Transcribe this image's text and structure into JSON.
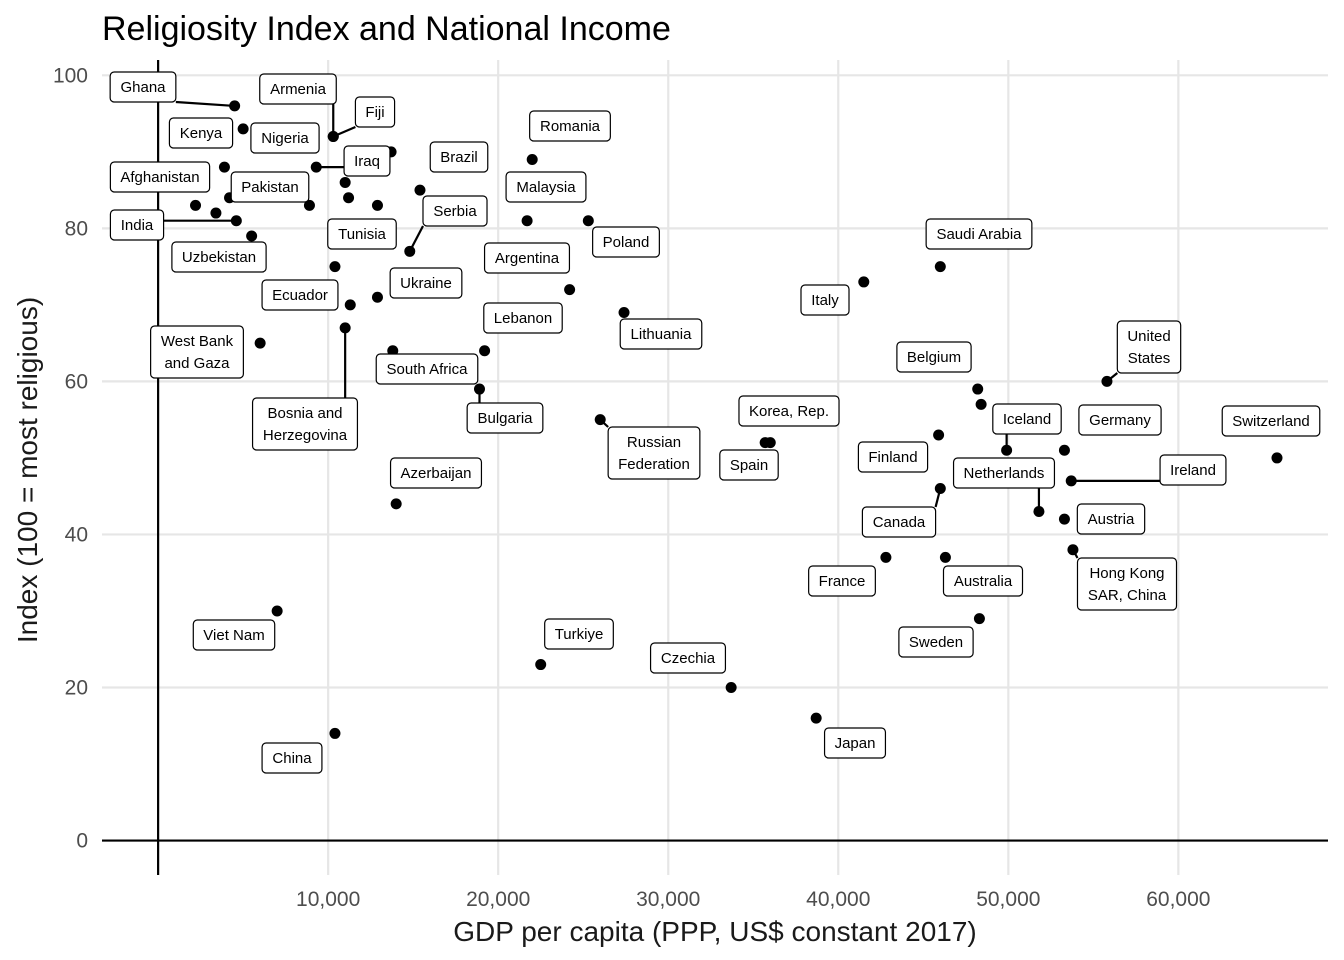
{
  "chart_data": {
    "type": "scatter",
    "title": "Religiosity Index and National Income",
    "xlabel": "GDP per capita (PPP, US$ constant 2017)",
    "ylabel": "Index (100 = most religious)",
    "xlim": [
      -3300,
      68800
    ],
    "ylim": [
      -4.5,
      102
    ],
    "xticks": [
      10000,
      20000,
      30000,
      40000,
      50000,
      60000
    ],
    "xtick_labels": [
      "10,000",
      "20,000",
      "30,000",
      "40,000",
      "50,000",
      "60,000"
    ],
    "yticks": [
      0,
      20,
      40,
      60,
      80,
      100
    ],
    "ytick_labels": [
      "0",
      "20",
      "40",
      "60",
      "80",
      "100"
    ],
    "grid": true,
    "reference_lines": {
      "x": 0,
      "y": 0
    },
    "points": [
      {
        "label": "Ghana",
        "x": 4500,
        "y": 96
      },
      {
        "label": "Armenia",
        "x": 10300,
        "y": 92
      },
      {
        "label": "Fiji",
        "x": 10300,
        "y": 92
      },
      {
        "label": "Kenya",
        "x": 5000,
        "y": 93
      },
      {
        "label": "Nigeria",
        "x": 13700,
        "y": 90
      },
      {
        "label": "Iraq",
        "x": 9300,
        "y": 88
      },
      {
        "label": "",
        "x": 3900,
        "y": 88
      },
      {
        "label": "Afghanistan",
        "x": 2200,
        "y": 83
      },
      {
        "label": "Pakistan",
        "x": 8900,
        "y": 83
      },
      {
        "label": "",
        "x": 4200,
        "y": 84
      },
      {
        "label": "",
        "x": 3400,
        "y": 82
      },
      {
        "label": "",
        "x": 11000,
        "y": 86
      },
      {
        "label": "",
        "x": 11200,
        "y": 84
      },
      {
        "label": "",
        "x": 12900,
        "y": 83
      },
      {
        "label": "Brazil",
        "x": 15400,
        "y": 85
      },
      {
        "label": "India",
        "x": 4600,
        "y": 81
      },
      {
        "label": "Uzbekistan",
        "x": 5500,
        "y": 79
      },
      {
        "label": "Tunisia",
        "x": 10400,
        "y": 75
      },
      {
        "label": "Serbia",
        "x": 14800,
        "y": 77
      },
      {
        "label": "Ukraine",
        "x": 12900,
        "y": 71
      },
      {
        "label": "Ecuador",
        "x": 11300,
        "y": 70
      },
      {
        "label": "Bosnia and Herzegovina",
        "x": 11000,
        "y": 67
      },
      {
        "label": "West Bank and Gaza",
        "x": 6000,
        "y": 65
      },
      {
        "label": "South Africa",
        "x": 13800,
        "y": 64
      },
      {
        "label": "Lebanon",
        "x": 19200,
        "y": 64
      },
      {
        "label": "Bulgaria",
        "x": 18900,
        "y": 59
      },
      {
        "label": "Azerbaijan",
        "x": 14000,
        "y": 44
      },
      {
        "label": "Viet Nam",
        "x": 7000,
        "y": 30
      },
      {
        "label": "China",
        "x": 10400,
        "y": 14
      },
      {
        "label": "Romania",
        "x": 22000,
        "y": 89
      },
      {
        "label": "Malaysia",
        "x": 21700,
        "y": 81
      },
      {
        "label": "Poland",
        "x": 25300,
        "y": 81
      },
      {
        "label": "Argentina",
        "x": 24200,
        "y": 72
      },
      {
        "label": "Lithuania",
        "x": 27400,
        "y": 69
      },
      {
        "label": "Russian Federation",
        "x": 26000,
        "y": 55
      },
      {
        "label": "Turkiye",
        "x": 22500,
        "y": 23
      },
      {
        "label": "Czechia",
        "x": 33700,
        "y": 20
      },
      {
        "label": "Korea, Rep.",
        "x": 36000,
        "y": 52
      },
      {
        "label": "Spain",
        "x": 35700,
        "y": 52
      },
      {
        "label": "Japan",
        "x": 38700,
        "y": 16
      },
      {
        "label": "Italy",
        "x": 41500,
        "y": 73
      },
      {
        "label": "Saudi Arabia",
        "x": 46000,
        "y": 75
      },
      {
        "label": "Belgium",
        "x": 48200,
        "y": 59
      },
      {
        "label": "",
        "x": 48400,
        "y": 57
      },
      {
        "label": "Finland",
        "x": 45900,
        "y": 53
      },
      {
        "label": "Iceland",
        "x": 49900,
        "y": 51
      },
      {
        "label": "Canada",
        "x": 46000,
        "y": 46
      },
      {
        "label": "Netherlands",
        "x": 51800,
        "y": 43
      },
      {
        "label": "France",
        "x": 42800,
        "y": 37
      },
      {
        "label": "Australia",
        "x": 46300,
        "y": 37
      },
      {
        "label": "Sweden",
        "x": 48300,
        "y": 29
      },
      {
        "label": "United States",
        "x": 55800,
        "y": 60
      },
      {
        "label": "Germany",
        "x": 53300,
        "y": 51
      },
      {
        "label": "Ireland",
        "x": 53700,
        "y": 47
      },
      {
        "label": "Austria",
        "x": 53300,
        "y": 42
      },
      {
        "label": "Hong Kong SAR, China",
        "x": 53800,
        "y": 38
      },
      {
        "label": "Switzerland",
        "x": 65800,
        "y": 50
      }
    ]
  }
}
